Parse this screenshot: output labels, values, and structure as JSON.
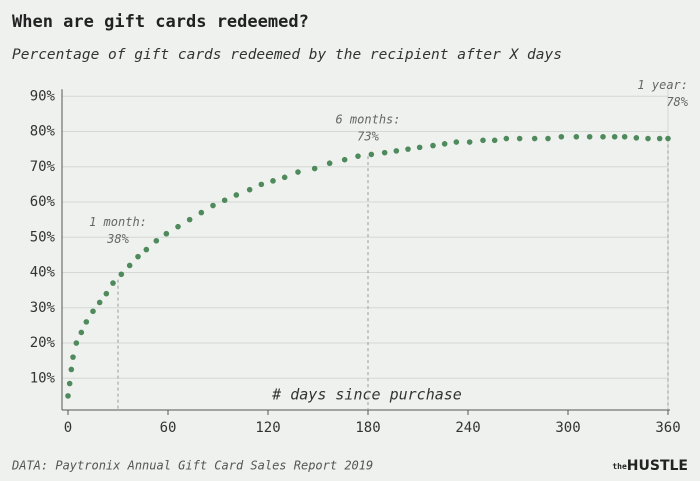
{
  "chart_data": {
    "type": "scatter",
    "title": "When are gift cards redeemed?",
    "subtitle": "Percentage of gift cards redeemed by the recipient after X days",
    "x_label": "# days since purchase",
    "source": "DATA: Paytronix Annual Gift Card Sales Report 2019",
    "logo_prefix": "the",
    "logo": "HUSTLE",
    "color": "#4f8a5c",
    "grid": true,
    "xlim": [
      0,
      360
    ],
    "xticks": [
      0,
      60,
      120,
      180,
      240,
      300,
      360
    ],
    "ylim": [
      1,
      92
    ],
    "yticks": [
      {
        "value": 10,
        "label": "10%"
      },
      {
        "value": 20,
        "label": "20%"
      },
      {
        "value": 30,
        "label": "30%"
      },
      {
        "value": 40,
        "label": "40%"
      },
      {
        "value": 50,
        "label": "50%"
      },
      {
        "value": 60,
        "label": "60%"
      },
      {
        "value": 70,
        "label": "70%"
      },
      {
        "value": 80,
        "label": "80%"
      },
      {
        "value": 90,
        "label": "90%"
      }
    ],
    "x": [
      0,
      1,
      2,
      3,
      5,
      8,
      11,
      15,
      19,
      23,
      27,
      32,
      37,
      42,
      47,
      53,
      59,
      66,
      73,
      80,
      87,
      94,
      101,
      109,
      116,
      123,
      130,
      138,
      148,
      157,
      166,
      174,
      182,
      190,
      197,
      204,
      211,
      219,
      226,
      233,
      241,
      249,
      256,
      263,
      271,
      280,
      288,
      296,
      305,
      313,
      321,
      328,
      334,
      341,
      348,
      355,
      360
    ],
    "values": [
      5,
      8.5,
      12.5,
      16,
      20,
      23,
      26,
      29,
      31.5,
      34,
      37,
      39.5,
      42,
      44.5,
      46.5,
      49,
      51,
      53,
      55,
      57,
      59,
      60.5,
      62,
      63.5,
      65,
      66,
      67,
      68.5,
      69.5,
      71,
      72,
      73,
      73.5,
      74,
      74.5,
      75,
      75.5,
      76,
      76.5,
      77,
      77,
      77.5,
      77.5,
      78,
      78,
      78,
      78,
      78.5,
      78.5,
      78.5,
      78.5,
      78.5,
      78.5,
      78.2,
      78,
      78,
      78
    ],
    "annotations": [
      {
        "x": 30,
        "label": "1 month:",
        "value": 38,
        "value_label": "38%"
      },
      {
        "x": 180,
        "label": "6 months:",
        "value": 73,
        "value_label": "73%"
      },
      {
        "x": 360,
        "label": "1 year:",
        "value": 78,
        "value_label": "78%"
      }
    ]
  }
}
